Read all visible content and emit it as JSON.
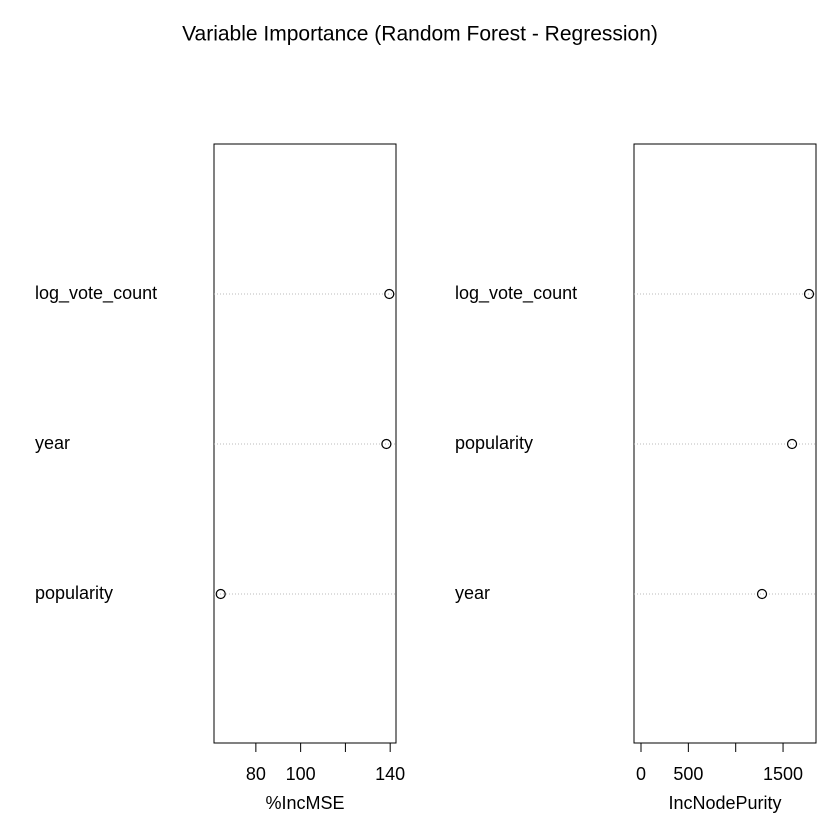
{
  "title": "Variable Importance (Random Forest - Regression)",
  "chart_data": [
    {
      "type": "dot",
      "xlabel": "%IncMSE",
      "categories": [
        "log_vote_count",
        "year",
        "popularity"
      ],
      "values": [
        139.6,
        138.3,
        64.3
      ],
      "xlim": [
        61.3,
        142.6
      ],
      "xticks": [
        80,
        100,
        140
      ],
      "xminor_ticks": [
        120
      ],
      "grid": true,
      "color": "#000000"
    },
    {
      "type": "dot",
      "xlabel": "IncNodePurity",
      "categories": [
        "log_vote_count",
        "popularity",
        "year"
      ],
      "values": [
        1774,
        1595,
        1278
      ],
      "xlim": [
        -74,
        1848
      ],
      "xticks": [
        0,
        500,
        1500
      ],
      "xminor_ticks": [
        1000
      ],
      "grid": true,
      "color": "#000000"
    }
  ]
}
